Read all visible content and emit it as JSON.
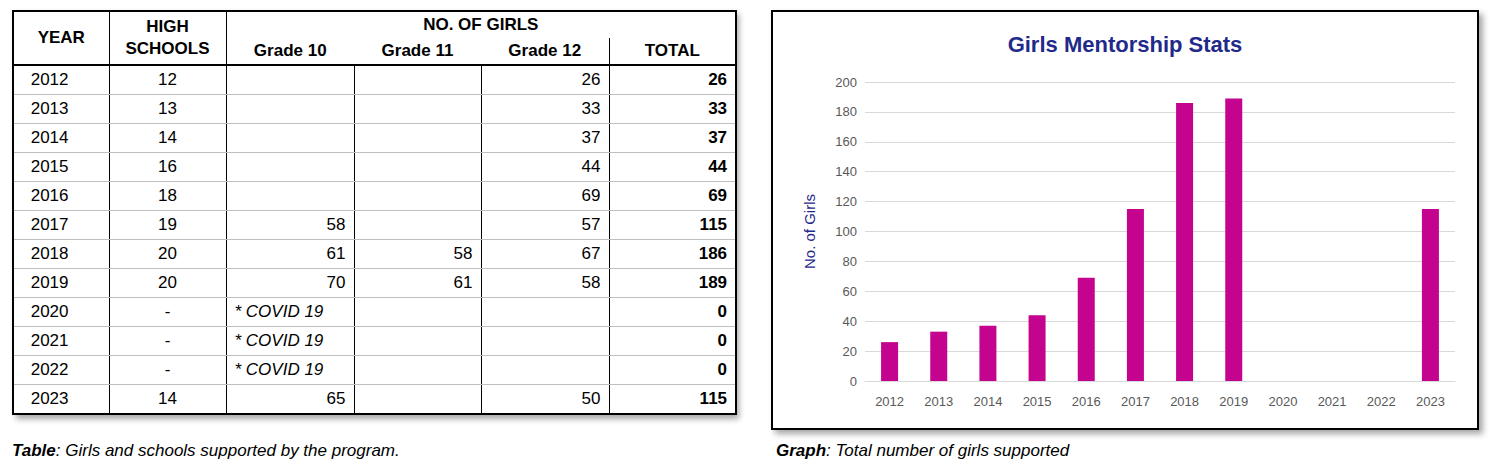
{
  "table": {
    "header": {
      "year": "YEAR",
      "schools": "HIGH SCHOOLS",
      "group": "NO. OF GIRLS",
      "columns": [
        "Grade 10",
        "Grade 11",
        "Grade 12",
        "TOTAL"
      ]
    },
    "rows": [
      [
        2012,
        12,
        null,
        null,
        26,
        26
      ],
      [
        2013,
        13,
        null,
        null,
        33,
        33
      ],
      [
        2014,
        14,
        null,
        null,
        37,
        37
      ],
      [
        2015,
        16,
        null,
        null,
        44,
        44
      ],
      [
        2016,
        18,
        null,
        null,
        69,
        69
      ],
      [
        2017,
        19,
        58,
        null,
        57,
        115
      ],
      [
        2018,
        20,
        61,
        58,
        67,
        186
      ],
      [
        2019,
        20,
        70,
        61,
        58,
        189
      ],
      [
        2020,
        "-",
        "* COVID 19",
        null,
        null,
        0
      ],
      [
        2021,
        "-",
        "* COVID 19",
        null,
        null,
        0
      ],
      [
        2022,
        "-",
        "* COVID 19",
        null,
        null,
        0
      ],
      [
        2023,
        14,
        65,
        null,
        50,
        115
      ]
    ],
    "caption": {
      "label": "Table",
      "text": ": Girls and schools supported by the program."
    }
  },
  "chart_data": {
    "type": "bar",
    "title": "Girls Mentorship Stats",
    "y_label": "No. of Girls",
    "categories": [
      "2012",
      "2013",
      "2014",
      "2015",
      "2016",
      "2017",
      "2018",
      "2019",
      "2020",
      "2021",
      "2022",
      "2023"
    ],
    "values": [
      26,
      33,
      37,
      44,
      69,
      115,
      186,
      189,
      0,
      0,
      0,
      115
    ],
    "color": "#c4048f",
    "ylim": [
      0,
      200
    ],
    "yticks": [
      0,
      20,
      40,
      60,
      80,
      100,
      120,
      140,
      160,
      180,
      200
    ],
    "grid": true
  },
  "graph_caption": {
    "label": "Graph",
    "text": ": Total number of girls supported"
  }
}
